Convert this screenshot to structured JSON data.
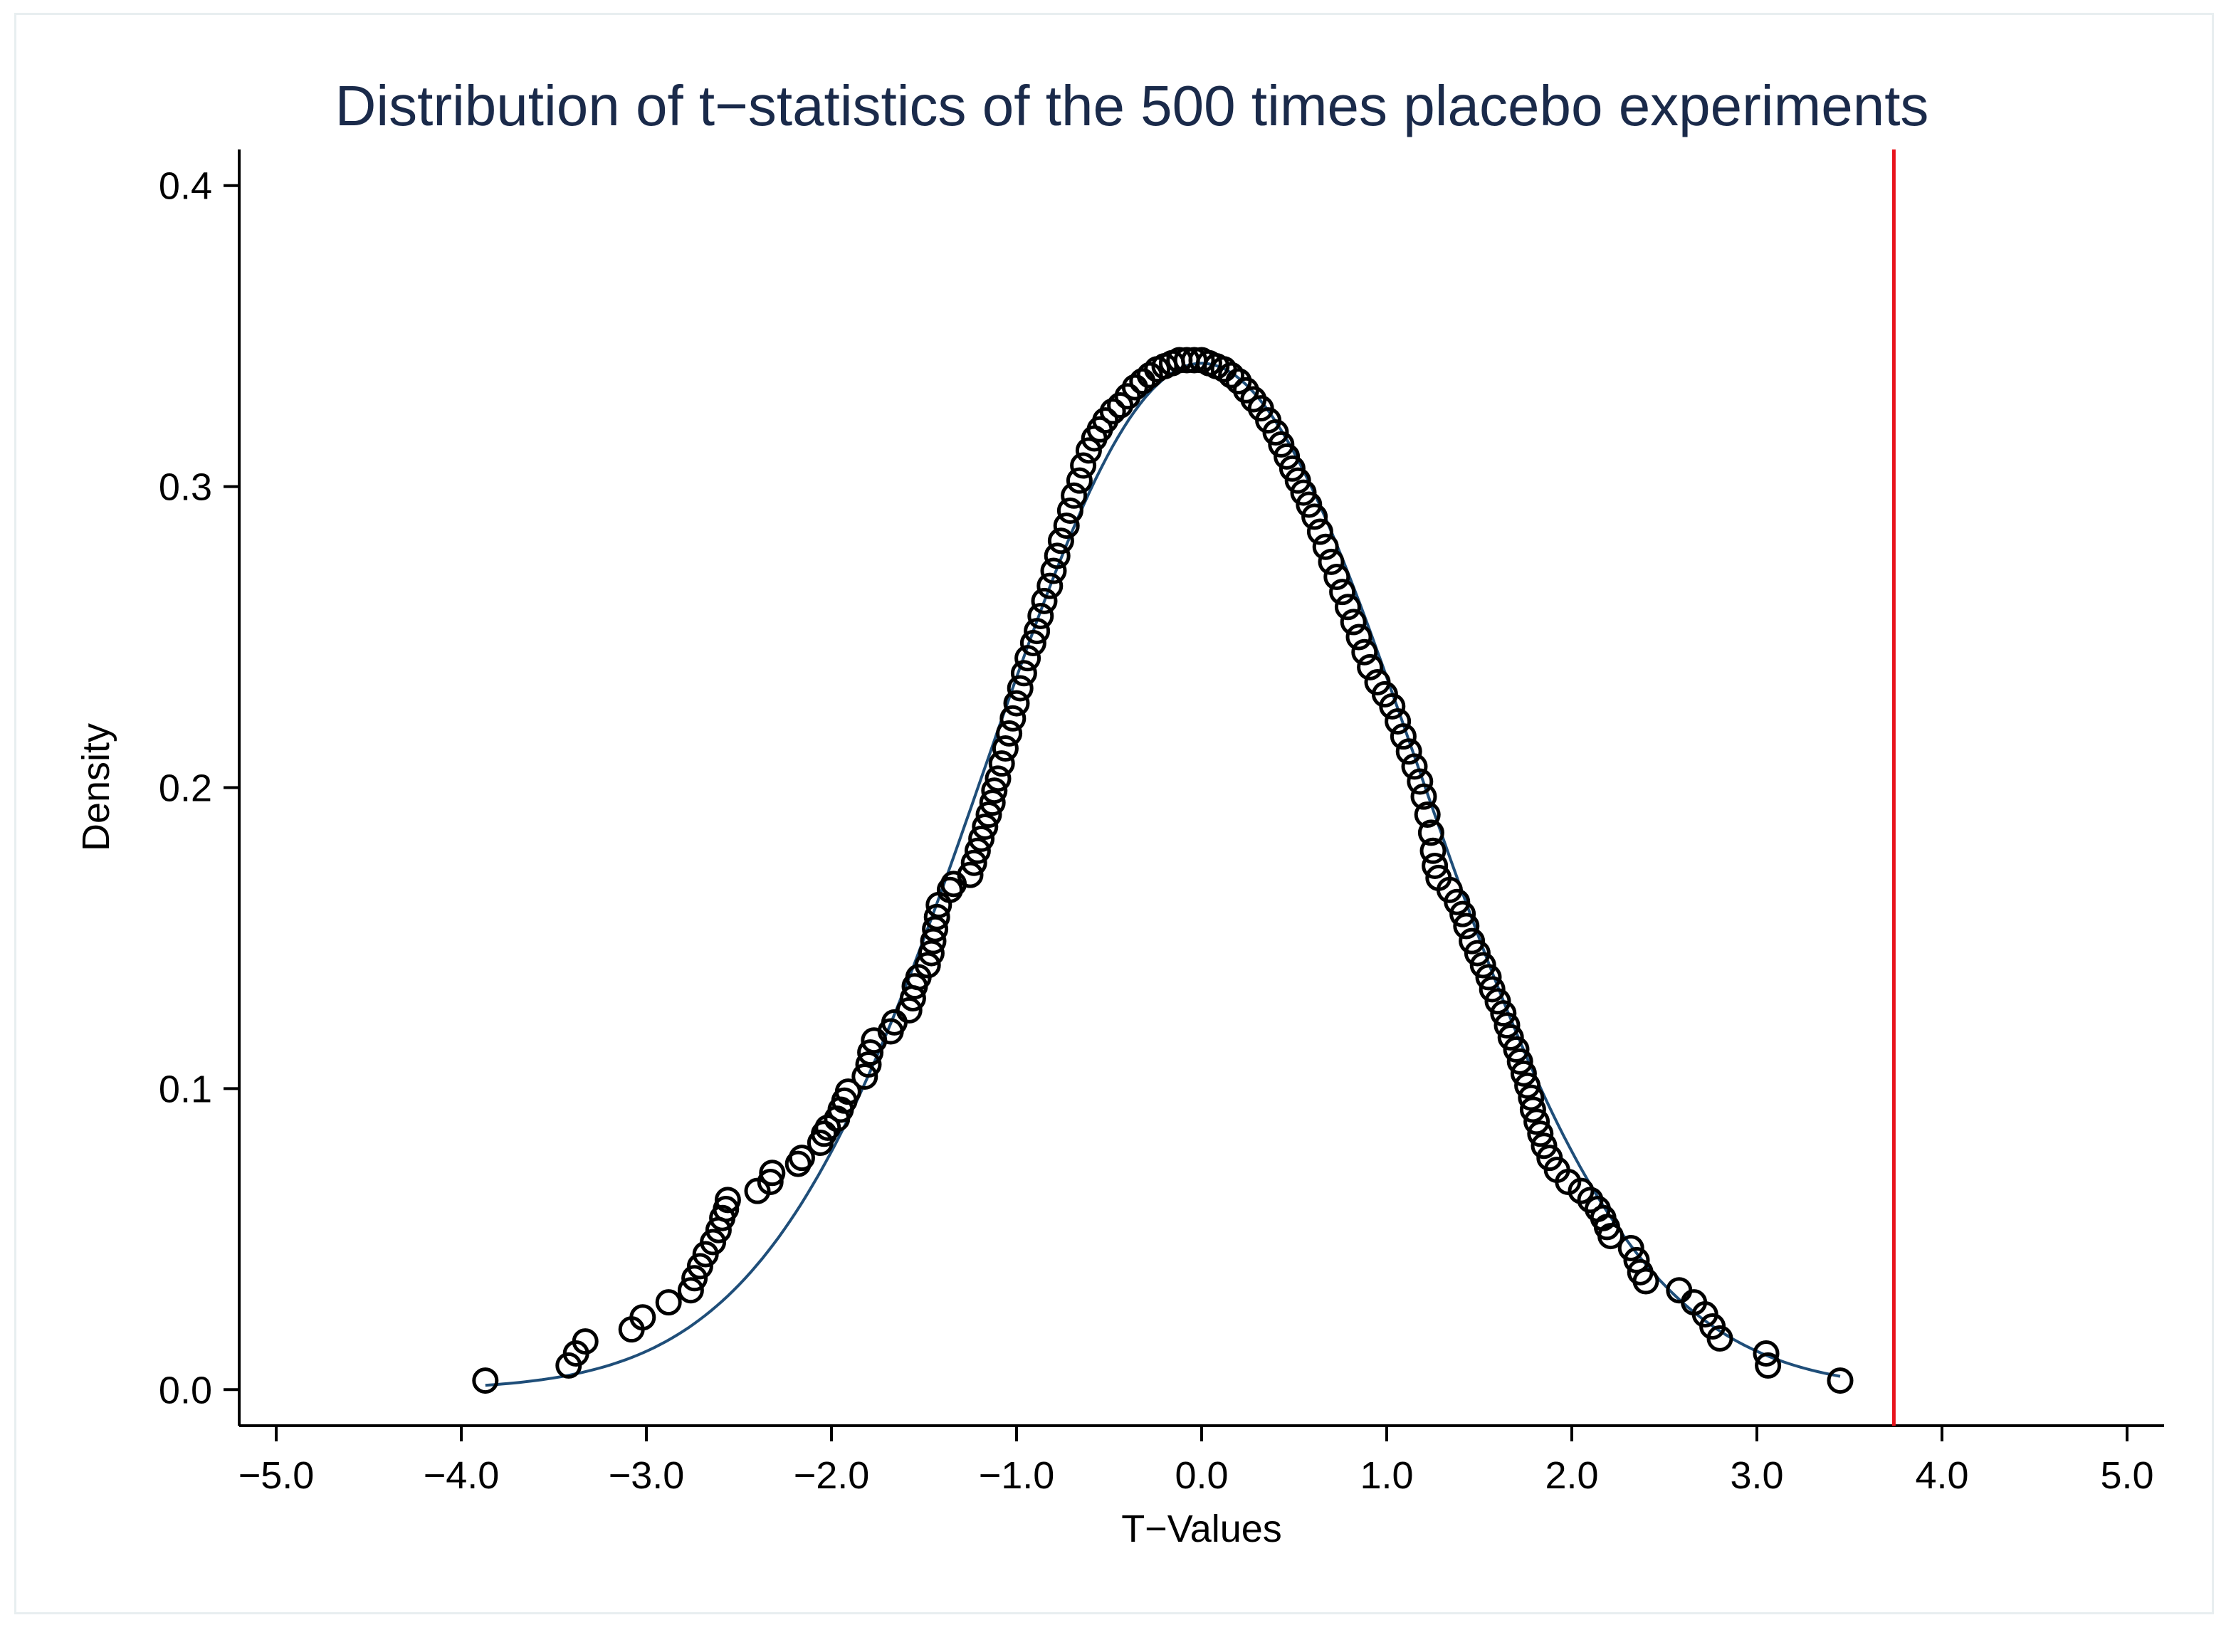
{
  "chart_data": {
    "type": "scatter",
    "title": "Distribution of t−statistics of the 500 times placebo experiments",
    "xlabel": "T−Values",
    "ylabel": "Density",
    "xlim": [
      -5.2,
      5.2
    ],
    "ylim": [
      -0.012,
      0.412
    ],
    "xticks": [
      -5.0,
      -4.0,
      -3.0,
      -2.0,
      -1.0,
      0.0,
      1.0,
      2.0,
      3.0,
      4.0,
      5.0
    ],
    "xtick_labels": [
      "−5.0",
      "−4.0",
      "−3.0",
      "−2.0",
      "−1.0",
      "0.0",
      "1.0",
      "2.0",
      "3.0",
      "4.0",
      "5.0"
    ],
    "yticks": [
      0.0,
      0.1,
      0.2,
      0.3,
      0.4
    ],
    "ytick_labels": [
      "0.0",
      "0.1",
      "0.2",
      "0.3",
      "0.4"
    ],
    "grid": false,
    "reference_line": {
      "x": 3.74,
      "color": "#e8141c",
      "description": "actual t-statistic"
    },
    "normal_curve": {
      "mean": 0.0,
      "sd": 1.17,
      "x_range": [
        -3.87,
        3.45
      ],
      "color": "#1f4e79"
    },
    "marker_color": "#000000",
    "kde_points": [
      [
        -3.87,
        0.003
      ],
      [
        -3.42,
        0.008
      ],
      [
        -3.38,
        0.012
      ],
      [
        -3.33,
        0.016
      ],
      [
        -3.08,
        0.02
      ],
      [
        -3.02,
        0.024
      ],
      [
        -2.88,
        0.029
      ],
      [
        -2.76,
        0.033
      ],
      [
        -2.74,
        0.037
      ],
      [
        -2.71,
        0.041
      ],
      [
        -2.68,
        0.045
      ],
      [
        -2.64,
        0.049
      ],
      [
        -2.61,
        0.053
      ],
      [
        -2.59,
        0.057
      ],
      [
        -2.57,
        0.06
      ],
      [
        -2.56,
        0.063
      ],
      [
        -2.4,
        0.066
      ],
      [
        -2.33,
        0.069
      ],
      [
        -2.32,
        0.072
      ],
      [
        -2.18,
        0.075
      ],
      [
        -2.16,
        0.077
      ],
      [
        -2.06,
        0.082
      ],
      [
        -2.04,
        0.085
      ],
      [
        -2.02,
        0.087
      ],
      [
        -1.97,
        0.09
      ],
      [
        -1.95,
        0.093
      ],
      [
        -1.93,
        0.096
      ],
      [
        -1.91,
        0.099
      ],
      [
        -1.82,
        0.104
      ],
      [
        -1.8,
        0.108
      ],
      [
        -1.79,
        0.112
      ],
      [
        -1.77,
        0.116
      ],
      [
        -1.68,
        0.119
      ],
      [
        -1.66,
        0.122
      ],
      [
        -1.58,
        0.126
      ],
      [
        -1.56,
        0.13
      ],
      [
        -1.55,
        0.134
      ],
      [
        -1.53,
        0.137
      ],
      [
        -1.48,
        0.141
      ],
      [
        -1.46,
        0.145
      ],
      [
        -1.45,
        0.149
      ],
      [
        -1.44,
        0.153
      ],
      [
        -1.43,
        0.157
      ],
      [
        -1.42,
        0.161
      ],
      [
        -1.36,
        0.166
      ],
      [
        -1.34,
        0.168
      ],
      [
        -1.25,
        0.171
      ],
      [
        -1.23,
        0.175
      ],
      [
        -1.21,
        0.179
      ],
      [
        -1.19,
        0.183
      ],
      [
        -1.17,
        0.187
      ],
      [
        -1.15,
        0.191
      ],
      [
        -1.13,
        0.195
      ],
      [
        -1.12,
        0.199
      ],
      [
        -1.1,
        0.203
      ],
      [
        -1.08,
        0.208
      ],
      [
        -1.06,
        0.213
      ],
      [
        -1.04,
        0.218
      ],
      [
        -1.02,
        0.223
      ],
      [
        -1.0,
        0.228
      ],
      [
        -0.98,
        0.233
      ],
      [
        -0.96,
        0.238
      ],
      [
        -0.94,
        0.243
      ],
      [
        -0.91,
        0.248
      ],
      [
        -0.89,
        0.252
      ],
      [
        -0.87,
        0.257
      ],
      [
        -0.85,
        0.262
      ],
      [
        -0.82,
        0.267
      ],
      [
        -0.8,
        0.272
      ],
      [
        -0.78,
        0.277
      ],
      [
        -0.76,
        0.282
      ],
      [
        -0.73,
        0.287
      ],
      [
        -0.71,
        0.292
      ],
      [
        -0.69,
        0.297
      ],
      [
        -0.66,
        0.302
      ],
      [
        -0.64,
        0.307
      ],
      [
        -0.61,
        0.312
      ],
      [
        -0.58,
        0.316
      ],
      [
        -0.55,
        0.319
      ],
      [
        -0.52,
        0.322
      ],
      [
        -0.48,
        0.325
      ],
      [
        -0.44,
        0.327
      ],
      [
        -0.4,
        0.33
      ],
      [
        -0.36,
        0.333
      ],
      [
        -0.32,
        0.335
      ],
      [
        -0.28,
        0.337
      ],
      [
        -0.24,
        0.339
      ],
      [
        -0.2,
        0.34
      ],
      [
        -0.16,
        0.341
      ],
      [
        -0.12,
        0.342
      ],
      [
        -0.08,
        0.342
      ],
      [
        -0.04,
        0.342
      ],
      [
        0.0,
        0.342
      ],
      [
        0.04,
        0.341
      ],
      [
        0.08,
        0.34
      ],
      [
        0.12,
        0.339
      ],
      [
        0.16,
        0.337
      ],
      [
        0.2,
        0.335
      ],
      [
        0.24,
        0.332
      ],
      [
        0.28,
        0.329
      ],
      [
        0.32,
        0.326
      ],
      [
        0.36,
        0.322
      ],
      [
        0.4,
        0.318
      ],
      [
        0.43,
        0.314
      ],
      [
        0.46,
        0.31
      ],
      [
        0.49,
        0.306
      ],
      [
        0.52,
        0.302
      ],
      [
        0.55,
        0.298
      ],
      [
        0.58,
        0.294
      ],
      [
        0.61,
        0.29
      ],
      [
        0.64,
        0.285
      ],
      [
        0.67,
        0.28
      ],
      [
        0.7,
        0.275
      ],
      [
        0.73,
        0.27
      ],
      [
        0.76,
        0.265
      ],
      [
        0.79,
        0.26
      ],
      [
        0.82,
        0.255
      ],
      [
        0.85,
        0.25
      ],
      [
        0.88,
        0.245
      ],
      [
        0.91,
        0.24
      ],
      [
        0.95,
        0.235
      ],
      [
        0.99,
        0.231
      ],
      [
        1.03,
        0.227
      ],
      [
        1.06,
        0.222
      ],
      [
        1.09,
        0.217
      ],
      [
        1.12,
        0.212
      ],
      [
        1.15,
        0.207
      ],
      [
        1.18,
        0.202
      ],
      [
        1.2,
        0.197
      ],
      [
        1.22,
        0.191
      ],
      [
        1.24,
        0.185
      ],
      [
        1.25,
        0.179
      ],
      [
        1.26,
        0.174
      ],
      [
        1.28,
        0.17
      ],
      [
        1.34,
        0.166
      ],
      [
        1.38,
        0.162
      ],
      [
        1.41,
        0.158
      ],
      [
        1.43,
        0.154
      ],
      [
        1.46,
        0.149
      ],
      [
        1.49,
        0.145
      ],
      [
        1.52,
        0.141
      ],
      [
        1.55,
        0.137
      ],
      [
        1.57,
        0.133
      ],
      [
        1.6,
        0.129
      ],
      [
        1.63,
        0.125
      ],
      [
        1.65,
        0.121
      ],
      [
        1.67,
        0.117
      ],
      [
        1.7,
        0.113
      ],
      [
        1.72,
        0.109
      ],
      [
        1.74,
        0.105
      ],
      [
        1.76,
        0.101
      ],
      [
        1.78,
        0.097
      ],
      [
        1.79,
        0.093
      ],
      [
        1.81,
        0.089
      ],
      [
        1.83,
        0.085
      ],
      [
        1.85,
        0.081
      ],
      [
        1.88,
        0.077
      ],
      [
        1.92,
        0.073
      ],
      [
        1.98,
        0.069
      ],
      [
        2.05,
        0.066
      ],
      [
        2.1,
        0.063
      ],
      [
        2.14,
        0.06
      ],
      [
        2.17,
        0.057
      ],
      [
        2.19,
        0.054
      ],
      [
        2.21,
        0.051
      ],
      [
        2.32,
        0.047
      ],
      [
        2.35,
        0.043
      ],
      [
        2.37,
        0.039
      ],
      [
        2.4,
        0.036
      ],
      [
        2.58,
        0.033
      ],
      [
        2.66,
        0.029
      ],
      [
        2.72,
        0.025
      ],
      [
        2.76,
        0.021
      ],
      [
        2.8,
        0.017
      ],
      [
        3.05,
        0.012
      ],
      [
        3.06,
        0.008
      ],
      [
        3.45,
        0.003
      ]
    ]
  }
}
